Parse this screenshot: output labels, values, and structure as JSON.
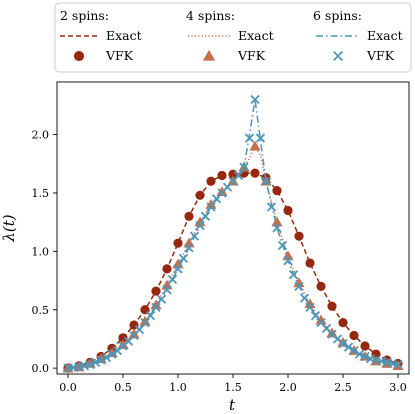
{
  "chart_data": {
    "type": "line",
    "xlabel": "t",
    "ylabel": "λ(t)",
    "xlim": [
      -0.1,
      3.1
    ],
    "ylim": [
      -0.05,
      2.45
    ],
    "x_ticks": [
      0.0,
      0.5,
      1.0,
      1.5,
      2.0,
      2.5,
      3.0
    ],
    "x_tick_labels": [
      "0.0",
      "0.5",
      "1.0",
      "1.5",
      "2.0",
      "2.5",
      "3.0"
    ],
    "y_ticks": [
      0.0,
      0.5,
      1.0,
      1.5,
      2.0
    ],
    "y_tick_labels": [
      "0.0",
      "0.5",
      "1.0",
      "1.5",
      "2.0"
    ],
    "legend": {
      "placement": "top",
      "groups": [
        {
          "title": "2 spins:",
          "exact_label": "Exact",
          "vfk_label": "VFK"
        },
        {
          "title": "4 spins:",
          "exact_label": "Exact",
          "vfk_label": "VFK"
        },
        {
          "title": "6 spins:",
          "exact_label": "Exact",
          "vfk_label": "VFK"
        }
      ]
    },
    "series": [
      {
        "group": 0,
        "color": "#96280f",
        "line_style": "dashed",
        "marker": "circle",
        "exact": {
          "x": [
            0.0,
            0.1,
            0.2,
            0.3,
            0.4,
            0.5,
            0.6,
            0.7,
            0.8,
            0.9,
            1.0,
            1.1,
            1.2,
            1.3,
            1.4,
            1.5,
            1.6,
            1.7,
            1.8,
            1.9,
            2.0,
            2.1,
            2.2,
            2.3,
            2.4,
            2.5,
            2.6,
            2.7,
            2.8,
            2.9,
            3.0
          ],
          "y": [
            0.0,
            0.02,
            0.05,
            0.1,
            0.17,
            0.26,
            0.37,
            0.5,
            0.66,
            0.85,
            1.07,
            1.3,
            1.48,
            1.6,
            1.65,
            1.66,
            1.67,
            1.67,
            1.63,
            1.52,
            1.35,
            1.13,
            0.9,
            0.7,
            0.53,
            0.39,
            0.28,
            0.19,
            0.12,
            0.07,
            0.04
          ]
        },
        "vfk": {
          "x": [
            0.0,
            0.1,
            0.2,
            0.3,
            0.4,
            0.5,
            0.6,
            0.7,
            0.8,
            0.9,
            1.0,
            1.1,
            1.2,
            1.3,
            1.4,
            1.5,
            1.6,
            1.7,
            1.8,
            1.9,
            2.0,
            2.1,
            2.2,
            2.3,
            2.4,
            2.5,
            2.6,
            2.7,
            2.8,
            2.9,
            3.0
          ],
          "y": [
            0.0,
            0.02,
            0.05,
            0.1,
            0.17,
            0.26,
            0.37,
            0.5,
            0.66,
            0.85,
            1.07,
            1.3,
            1.48,
            1.6,
            1.65,
            1.66,
            1.67,
            1.67,
            1.63,
            1.52,
            1.35,
            1.13,
            0.9,
            0.7,
            0.53,
            0.39,
            0.28,
            0.19,
            0.12,
            0.07,
            0.04
          ]
        }
      },
      {
        "group": 1,
        "color": "#c86e4b",
        "line_style": "dotted",
        "marker": "triangle",
        "exact": {
          "x": [
            0.0,
            0.1,
            0.2,
            0.3,
            0.4,
            0.5,
            0.6,
            0.7,
            0.8,
            0.9,
            1.0,
            1.1,
            1.2,
            1.3,
            1.4,
            1.5,
            1.6,
            1.65,
            1.7,
            1.75,
            1.8,
            1.9,
            2.0,
            2.1,
            2.2,
            2.3,
            2.4,
            2.5,
            2.6,
            2.7,
            2.8,
            2.9,
            3.0
          ],
          "y": [
            0.0,
            0.01,
            0.04,
            0.08,
            0.13,
            0.2,
            0.29,
            0.4,
            0.54,
            0.71,
            0.89,
            1.07,
            1.25,
            1.4,
            1.51,
            1.6,
            1.72,
            1.8,
            1.9,
            1.82,
            1.6,
            1.25,
            0.96,
            0.73,
            0.55,
            0.41,
            0.3,
            0.22,
            0.15,
            0.1,
            0.06,
            0.04,
            0.02
          ]
        },
        "vfk": {
          "x": [
            0.0,
            0.1,
            0.2,
            0.3,
            0.4,
            0.5,
            0.6,
            0.7,
            0.8,
            0.9,
            1.0,
            1.1,
            1.2,
            1.3,
            1.4,
            1.5,
            1.6,
            1.7,
            1.8,
            1.9,
            2.0,
            2.1,
            2.2,
            2.3,
            2.4,
            2.5,
            2.6,
            2.7,
            2.8,
            2.9,
            3.0
          ],
          "y": [
            0.0,
            0.01,
            0.04,
            0.08,
            0.13,
            0.2,
            0.29,
            0.4,
            0.54,
            0.71,
            0.89,
            1.07,
            1.25,
            1.4,
            1.51,
            1.6,
            1.72,
            1.9,
            1.6,
            1.25,
            0.96,
            0.73,
            0.55,
            0.41,
            0.3,
            0.22,
            0.15,
            0.1,
            0.06,
            0.04,
            0.02
          ]
        }
      },
      {
        "group": 2,
        "color": "#4b96b9",
        "line_style": "dashdot",
        "marker": "x",
        "exact": {
          "x": [
            0.0,
            0.1,
            0.2,
            0.3,
            0.4,
            0.5,
            0.6,
            0.7,
            0.8,
            0.9,
            1.0,
            1.1,
            1.2,
            1.3,
            1.4,
            1.5,
            1.6,
            1.65,
            1.7,
            1.75,
            1.8,
            1.9,
            2.0,
            2.1,
            2.2,
            2.3,
            2.4,
            2.5,
            2.6,
            2.7,
            2.8,
            2.9,
            3.0
          ],
          "y": [
            0.0,
            0.01,
            0.03,
            0.07,
            0.12,
            0.19,
            0.28,
            0.39,
            0.52,
            0.67,
            0.85,
            1.03,
            1.22,
            1.38,
            1.5,
            1.6,
            1.72,
            2.0,
            2.3,
            1.95,
            1.6,
            1.2,
            0.92,
            0.7,
            0.52,
            0.39,
            0.29,
            0.21,
            0.15,
            0.1,
            0.07,
            0.05,
            0.03
          ]
        },
        "vfk": {
          "x": [
            0.0,
            0.05,
            0.1,
            0.15,
            0.2,
            0.25,
            0.3,
            0.35,
            0.4,
            0.45,
            0.5,
            0.55,
            0.6,
            0.65,
            0.7,
            0.75,
            0.8,
            0.85,
            0.9,
            0.95,
            1.0,
            1.05,
            1.1,
            1.15,
            1.2,
            1.25,
            1.3,
            1.35,
            1.4,
            1.45,
            1.5,
            1.55,
            1.6,
            1.65,
            1.7,
            1.75,
            1.8,
            1.85,
            1.9,
            1.95,
            2.0,
            2.05,
            2.1,
            2.15,
            2.2,
            2.25,
            2.3,
            2.35,
            2.4,
            2.45,
            2.5,
            2.55,
            2.6,
            2.65,
            2.7,
            2.75,
            2.8,
            2.85,
            2.9,
            2.95,
            3.0
          ],
          "y": [
            0.0,
            0.005,
            0.01,
            0.02,
            0.03,
            0.05,
            0.07,
            0.09,
            0.12,
            0.15,
            0.19,
            0.23,
            0.28,
            0.33,
            0.39,
            0.45,
            0.52,
            0.59,
            0.67,
            0.76,
            0.85,
            0.94,
            1.03,
            1.13,
            1.22,
            1.3,
            1.38,
            1.45,
            1.5,
            1.55,
            1.6,
            1.65,
            1.72,
            1.97,
            2.3,
            1.97,
            1.6,
            1.38,
            1.2,
            1.05,
            0.92,
            0.8,
            0.7,
            0.6,
            0.52,
            0.45,
            0.39,
            0.34,
            0.29,
            0.25,
            0.21,
            0.18,
            0.15,
            0.12,
            0.1,
            0.08,
            0.07,
            0.06,
            0.05,
            0.04,
            0.03
          ]
        }
      }
    ]
  }
}
